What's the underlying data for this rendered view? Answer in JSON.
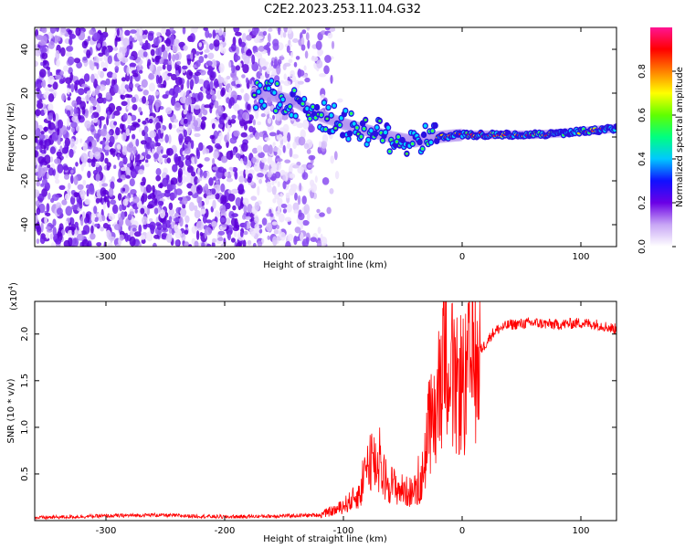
{
  "title": "C2E2.2023.253.11.04.G32",
  "chart_data": [
    {
      "type": "heatmap",
      "xlabel": "Height of straight line (km)",
      "ylabel": "Frequency (Hz)",
      "xlim": [
        -360,
        130
      ],
      "ylim": [
        -50,
        50
      ],
      "xticks": [
        -300,
        -200,
        -100,
        0,
        100
      ],
      "yticks": [
        -40,
        -20,
        0,
        20,
        40
      ],
      "colorbar": {
        "label": "Normalized spectral amplitude",
        "range": [
          0.0,
          1.0
        ],
        "ticks": [
          "0.0",
          "0.2",
          "0.4",
          "0.6",
          "0.8"
        ],
        "colors": [
          "#ffffff",
          "#c8a6f5",
          "#6b00e6",
          "#1010ff",
          "#00c8ff",
          "#00ff80",
          "#60ff00",
          "#ffff00",
          "#ff8000",
          "#ff0000",
          "#ff1493"
        ]
      },
      "trace": {
        "x": [
          -175,
          -160,
          -140,
          -120,
          -100,
          -80,
          -60,
          -40,
          -20,
          0,
          30,
          60,
          90,
          130
        ],
        "y": [
          20,
          19,
          16,
          10,
          6,
          3,
          0,
          -2,
          0,
          1,
          1,
          1,
          2,
          4
        ]
      },
      "noise_region_x": [
        -360,
        -140
      ]
    },
    {
      "type": "line",
      "xlabel": "Height of straight line (km)",
      "ylabel": "SNR (10 * v/v)",
      "scale_label": "(x10",
      "scale_exponent": "4",
      "scale_suffix": ")",
      "xlim": [
        -360,
        130
      ],
      "ylim": [
        0,
        2.35
      ],
      "xticks": [
        -300,
        -200,
        -100,
        0,
        100
      ],
      "yticks": [
        "0.5",
        "1.0",
        "1.5",
        "2.0"
      ],
      "ytick_values": [
        0.5,
        1.0,
        1.5,
        2.0
      ],
      "series": [
        {
          "color": "#ff0000",
          "x": [
            -360,
            -300,
            -260,
            -200,
            -150,
            -120,
            -105,
            -95,
            -85,
            -78,
            -72,
            -65,
            -55,
            -45,
            -35,
            -28,
            -22,
            -18,
            -14,
            -10,
            -6,
            -2,
            2,
            8,
            14,
            20,
            25,
            30,
            40,
            60,
            80,
            100,
            115,
            130
          ],
          "y": [
            0.03,
            0.05,
            0.06,
            0.04,
            0.05,
            0.06,
            0.12,
            0.2,
            0.3,
            0.7,
            0.6,
            0.45,
            0.35,
            0.3,
            0.35,
            1.0,
            1.15,
            1.6,
            2.1,
            1.7,
            1.35,
            1.5,
            1.4,
            1.7,
            1.8,
            1.9,
            2.0,
            2.05,
            2.1,
            2.12,
            2.1,
            2.12,
            2.1,
            2.05
          ]
        }
      ]
    }
  ]
}
